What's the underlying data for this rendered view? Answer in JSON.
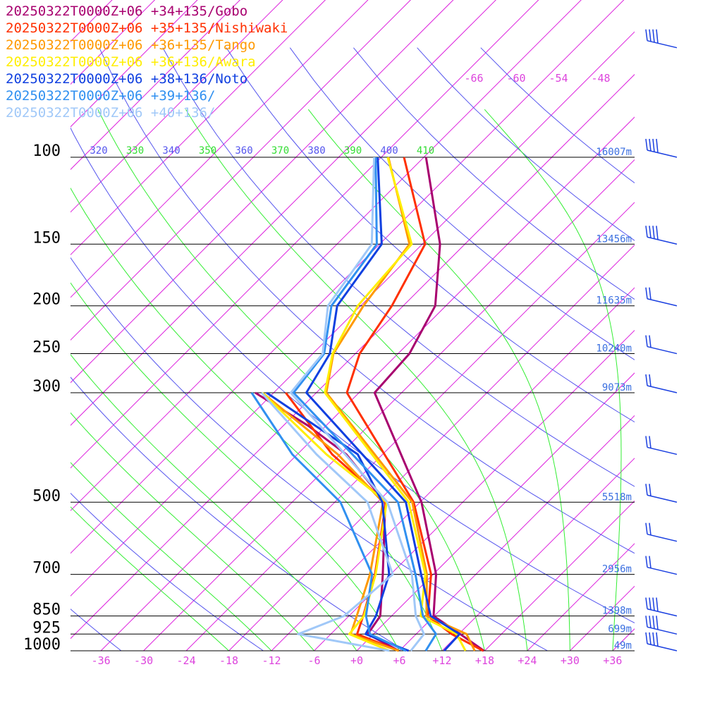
{
  "legend": [
    {
      "label": "20250322T0000Z+06 +34+135/Gobo",
      "color": "#a8006f"
    },
    {
      "label": "20250322T0000Z+06 +35+135/Nishiwaki",
      "color": "#ff3000"
    },
    {
      "label": "20250322T0000Z+06 +36+135/Tango",
      "color": "#ff9900"
    },
    {
      "label": "20250322T0000Z+06 +36+136/Awara",
      "color": "#ffee00"
    },
    {
      "label": "20250322T0000Z+06 +38+136/Noto",
      "color": "#1040e0"
    },
    {
      "label": "20250322T0000Z+06 +39+136/",
      "color": "#3090f0"
    },
    {
      "label": "20250322T0000Z+06 +40+136/",
      "color": "#a0c8f8"
    }
  ],
  "chart_data": {
    "type": "line",
    "subtype": "skew-T log-p sounding",
    "pressure_levels": [
      100,
      150,
      200,
      250,
      300,
      500,
      700,
      850,
      925,
      1000
    ],
    "pressure_labels": [
      "100",
      "150",
      "200",
      "250",
      "300",
      "500",
      "700",
      "850",
      "925",
      "1000"
    ],
    "height_labels": [
      "16007m",
      "13456m",
      "11635m",
      "10240m",
      "9073m",
      "5518m",
      "2956m",
      "1398m",
      "699m",
      "49m"
    ],
    "temperature_ticks": [
      "-36",
      "-30",
      "-24",
      "-18",
      "-12",
      "-6",
      "+0",
      "+6",
      "+12",
      "+18",
      "+24",
      "+30",
      "+36"
    ],
    "potential_temperature_labels": [
      "320",
      "330",
      "340",
      "350",
      "360",
      "370",
      "380",
      "390",
      "400",
      "410"
    ],
    "upper_isotherm_labels": [
      "-66",
      "-60",
      "-54",
      "-48"
    ],
    "xlim": [
      -39,
      39
    ],
    "ylim": [
      1000,
      100
    ],
    "colors": {
      "isotherm": "#dd22dd",
      "dry_adiabat": "#5555ee",
      "moist_adiabat": "#33ee33",
      "isobar": "#000000",
      "height_label": "#3a6fe0",
      "tick_label": "#dd44dd",
      "wind_barb": "#1a3fe0"
    },
    "series": [
      {
        "name": "20250322T0000Z+06 +34+135/Gobo",
        "color": "#a8006f",
        "points": [
          [
            1000,
            17.9
          ],
          [
            925,
            12.2
          ],
          [
            850,
            5.9
          ],
          [
            700,
            0.4
          ],
          [
            500,
            -11.8
          ],
          [
            300,
            -33.8
          ],
          [
            250,
            -34.4
          ],
          [
            200,
            -37.5
          ],
          [
            150,
            -45.5
          ],
          [
            100,
            -59.7
          ]
        ],
        "dewpoints": [
          [
            1000,
            5.9
          ],
          [
            925,
            -0.8
          ],
          [
            850,
            -1.6
          ],
          [
            700,
            -7.1
          ],
          [
            500,
            -16.9
          ],
          [
            400,
            -29.1
          ],
          [
            350,
            -38.5
          ],
          [
            300,
            -50.6
          ]
        ]
      },
      {
        "name": "20250322T0000Z+06 +35+135/Nishiwaki",
        "color": "#ff3000",
        "points": [
          [
            1000,
            17.8
          ],
          [
            925,
            11.0
          ],
          [
            850,
            5.1
          ],
          [
            700,
            -0.3
          ],
          [
            500,
            -12.9
          ],
          [
            300,
            -37.7
          ],
          [
            250,
            -41.4
          ],
          [
            200,
            -43.6
          ],
          [
            150,
            -47.6
          ],
          [
            100,
            -62.8
          ]
        ],
        "dewpoints": [
          [
            1000,
            5.9
          ],
          [
            925,
            -2.3
          ],
          [
            850,
            -4.0
          ],
          [
            700,
            -8.2
          ],
          [
            500,
            -16.8
          ],
          [
            400,
            -31.1
          ],
          [
            300,
            -46.3
          ]
        ]
      },
      {
        "name": "20250322T0000Z+06 +36+135/Tango",
        "color": "#ff9900",
        "points": [
          [
            1000,
            16.6
          ],
          [
            925,
            13.1
          ],
          [
            850,
            4.9
          ],
          [
            700,
            -0.9
          ],
          [
            500,
            -13.1
          ],
          [
            300,
            -40.6
          ],
          [
            250,
            -45.1
          ],
          [
            200,
            -47.6
          ],
          [
            150,
            -49.8
          ],
          [
            100,
            -65.0
          ]
        ],
        "dewpoints": [
          [
            1000,
            5.9
          ],
          [
            925,
            -3.2
          ],
          [
            850,
            -4.9
          ],
          [
            700,
            -8.9
          ],
          [
            500,
            -17.2
          ],
          [
            400,
            -30.3
          ],
          [
            300,
            -49.6
          ]
        ]
      },
      {
        "name": "20250322T0000Z+06 +36+136/Awara",
        "color": "#ffee00",
        "points": [
          [
            1000,
            15.3
          ],
          [
            925,
            11.7
          ],
          [
            850,
            4.1
          ],
          [
            700,
            -1.1
          ],
          [
            500,
            -13.6
          ],
          [
            300,
            -40.8
          ],
          [
            250,
            -45.2
          ],
          [
            200,
            -48.4
          ],
          [
            150,
            -49.5
          ],
          [
            100,
            -65.1
          ]
        ],
        "dewpoints": [
          [
            1000,
            4.6
          ],
          [
            925,
            -3.4
          ],
          [
            850,
            -3.9
          ],
          [
            700,
            -8.1
          ],
          [
            500,
            -16.7
          ],
          [
            400,
            -31.9
          ],
          [
            300,
            -49.6
          ]
        ]
      },
      {
        "name": "20250322T0000Z+06 +38+136/Noto",
        "color": "#1040e0",
        "points": [
          [
            1000,
            12.3
          ],
          [
            925,
            12.1
          ],
          [
            850,
            5.5
          ],
          [
            700,
            -1.7
          ],
          [
            500,
            -14.0
          ],
          [
            300,
            -43.4
          ],
          [
            250,
            -45.6
          ],
          [
            200,
            -51.3
          ],
          [
            150,
            -53.7
          ],
          [
            100,
            -66.5
          ]
        ],
        "dewpoints": [
          [
            1000,
            7.3
          ],
          [
            925,
            -1.1
          ],
          [
            850,
            -2.2
          ],
          [
            700,
            -6.2
          ],
          [
            500,
            -17.3
          ],
          [
            400,
            -27.5
          ],
          [
            300,
            -49.0
          ]
        ]
      },
      {
        "name": "20250322T0000Z+06 +39+136/",
        "color": "#3090f0",
        "points": [
          [
            1000,
            9.7
          ],
          [
            925,
            8.8
          ],
          [
            850,
            4.4
          ],
          [
            700,
            -2.5
          ],
          [
            500,
            -15.1
          ],
          [
            300,
            -45.2
          ],
          [
            250,
            -46.4
          ],
          [
            200,
            -52.1
          ],
          [
            150,
            -54.4
          ],
          [
            100,
            -66.8
          ]
        ],
        "dewpoints": [
          [
            1000,
            6.9
          ],
          [
            925,
            -0.5
          ],
          [
            850,
            -3.6
          ],
          [
            700,
            -8.6
          ],
          [
            500,
            -23.2
          ],
          [
            400,
            -36.7
          ],
          [
            300,
            -51.1
          ]
        ]
      },
      {
        "name": "20250322T0000Z+06 +40+136/",
        "color": "#a0c8f8",
        "points": [
          [
            1000,
            7.6
          ],
          [
            925,
            7.1
          ],
          [
            850,
            3.4
          ],
          [
            700,
            -3.0
          ],
          [
            500,
            -16.6
          ],
          [
            300,
            -45.6
          ],
          [
            250,
            -46.6
          ],
          [
            200,
            -52.6
          ],
          [
            150,
            -55.1
          ],
          [
            100,
            -67.0
          ]
        ],
        "dewpoints": [
          [
            1000,
            4.6
          ],
          [
            925,
            -10.6
          ],
          [
            850,
            -6.7
          ],
          [
            700,
            -5.7
          ],
          [
            500,
            -19.4
          ],
          [
            400,
            -33.3
          ],
          [
            300,
            -49.7
          ]
        ]
      }
    ]
  }
}
